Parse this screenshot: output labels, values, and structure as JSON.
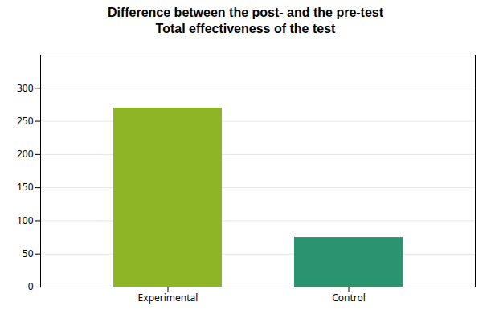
{
  "chart_data": {
    "type": "bar",
    "title": "Difference between the post- and the pre-test",
    "subtitle": "Total effectiveness of the test",
    "categories": [
      "Experimental",
      "Control"
    ],
    "values": [
      270,
      75
    ],
    "colors": [
      "#8db526",
      "#2a9370"
    ],
    "ylim": [
      0,
      350
    ],
    "yticks": [
      0,
      50,
      100,
      150,
      200,
      250,
      300
    ],
    "grid": true
  }
}
